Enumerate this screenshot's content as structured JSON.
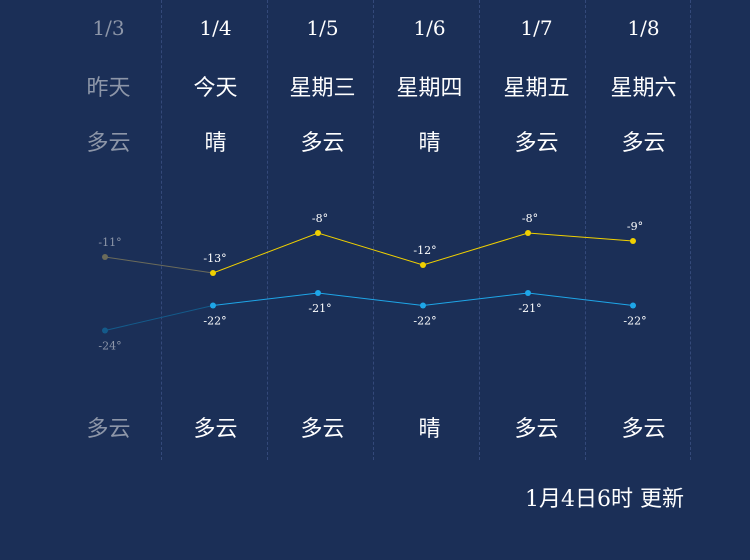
{
  "days": [
    {
      "date": "1/3",
      "week": "昨天",
      "weather_day": "多云",
      "weather_night": "多云",
      "high": -11,
      "high_label": "-11°",
      "low": -24,
      "low_label": "-24°",
      "past": true
    },
    {
      "date": "1/4",
      "week": "今天",
      "weather_day": "晴",
      "weather_night": "多云",
      "high": -13,
      "high_label": "-13°",
      "low": -22,
      "low_label": "-22°",
      "past": false
    },
    {
      "date": "1/5",
      "week": "星期三",
      "weather_day": "多云",
      "weather_night": "多云",
      "high": -8,
      "high_label": "-8°",
      "low": -21,
      "low_label": "-21°",
      "past": false
    },
    {
      "date": "1/6",
      "week": "星期四",
      "weather_day": "晴",
      "weather_night": "晴",
      "high": -12,
      "high_label": "-12°",
      "low": -22,
      "low_label": "-22°",
      "past": false
    },
    {
      "date": "1/7",
      "week": "星期五",
      "weather_day": "多云",
      "weather_night": "多云",
      "high": -8,
      "high_label": "-8°",
      "low": -21,
      "low_label": "-21°",
      "past": false
    },
    {
      "date": "1/8",
      "week": "星期六",
      "weather_day": "多云",
      "weather_night": "多云",
      "high": -9,
      "high_label": "-9°",
      "low": -22,
      "low_label": "-22°",
      "past": false
    }
  ],
  "footer": {
    "update_text": "1月4日6时 更新"
  },
  "colors": {
    "background": "#1b2f57",
    "high_line": "#f0d000",
    "low_line": "#1ea6e8",
    "past_high": "#6b6b5a",
    "past_low": "#145a8a",
    "past_text": "#8d96a8"
  },
  "chart_data": {
    "type": "line",
    "categories": [
      "1/3",
      "1/4",
      "1/5",
      "1/6",
      "1/7",
      "1/8"
    ],
    "series": [
      {
        "values": [
          -11,
          -13,
          -8,
          -12,
          -8,
          -9
        ]
      },
      {
        "values": [
          -24,
          -22,
          -21,
          -22,
          -21,
          -22
        ]
      }
    ]
  }
}
